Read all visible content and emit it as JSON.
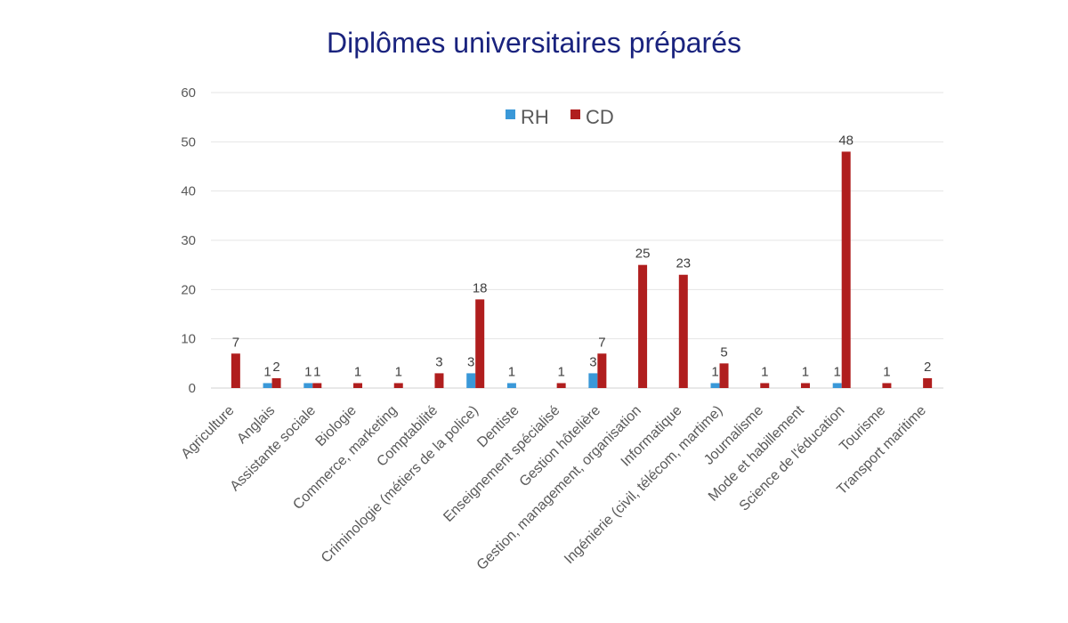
{
  "chart_data": {
    "type": "bar",
    "title": "Diplômes universitaires préparés",
    "xlabel": "",
    "ylabel": "",
    "ylim": [
      0,
      60
    ],
    "yticks": [
      0,
      10,
      20,
      30,
      40,
      50,
      60
    ],
    "grid": true,
    "legend_position": "top-center",
    "categories": [
      "Agriculture",
      "Anglais",
      "Assistante sociale",
      "Biologie",
      "Commerce, marketing",
      "Comptabilité",
      "Criminologie (métiers de la police)",
      "Dentiste",
      "Enseignement spécialisé",
      "Gestion hôtelière",
      "Gestion, management, organisation",
      "Informatique",
      "Ingénierie (civil, télécom, martime)",
      "Journalisme",
      "Mode et habillement",
      "Science de l'éducation",
      "Tourisme",
      "Transport maritime"
    ],
    "series": [
      {
        "name": "RH",
        "color": "#3a98d8",
        "values": [
          null,
          1,
          1,
          null,
          null,
          null,
          3,
          1,
          null,
          3,
          null,
          null,
          1,
          null,
          null,
          1,
          null,
          null
        ]
      },
      {
        "name": "CD",
        "color": "#b01e1e",
        "values": [
          7,
          2,
          1,
          1,
          1,
          3,
          18,
          null,
          1,
          7,
          25,
          23,
          5,
          1,
          1,
          48,
          1,
          2
        ]
      }
    ]
  }
}
